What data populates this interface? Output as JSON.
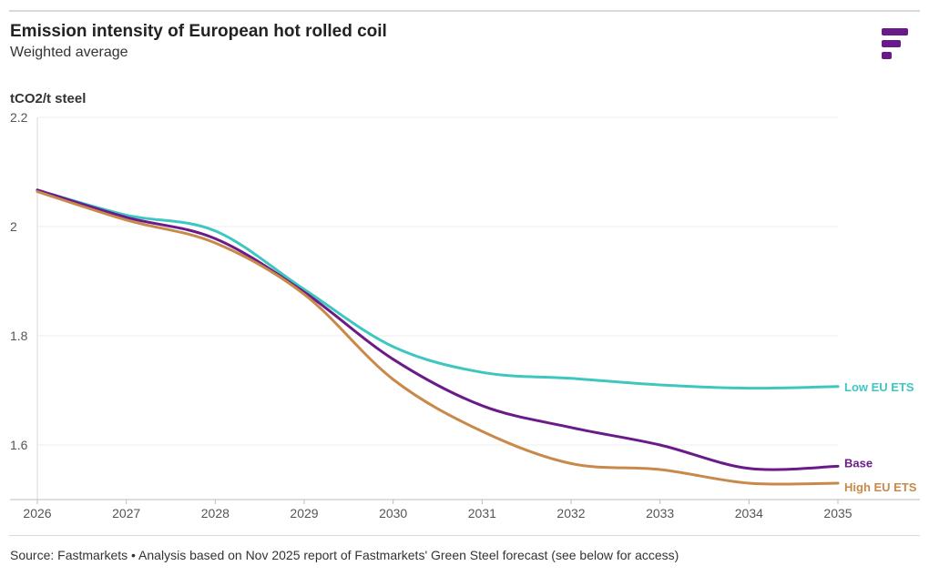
{
  "header": {
    "title": "Emission intensity of European hot rolled coil",
    "subtitle": "Weighted average",
    "unit_label": "tCO2/t steel"
  },
  "footer": {
    "source": "Source: Fastmarkets • Analysis based on Nov 2025 report of Fastmarkets' Green Steel forecast (see below for access)"
  },
  "colors": {
    "logo": "#6a1b8a",
    "grid": "#ececec"
  },
  "chart_data": {
    "type": "line",
    "title": "Emission intensity of European hot rolled coil",
    "subtitle": "Weighted average",
    "xlabel": "",
    "ylabel": "tCO2/t steel",
    "x": [
      2026,
      2027,
      2028,
      2029,
      2030,
      2031,
      2032,
      2033,
      2034,
      2035
    ],
    "x_ticks": [
      "2026",
      "2027",
      "2028",
      "2029",
      "2030",
      "2031",
      "2032",
      "2033",
      "2034",
      "2035"
    ],
    "y_ticks": [
      "1.6",
      "1.8",
      "2",
      "2.2"
    ],
    "y_tick_values": [
      1.6,
      1.8,
      2.0,
      2.2
    ],
    "ylim": [
      1.5,
      2.2
    ],
    "xlim": [
      2026,
      2035
    ],
    "grid": true,
    "legend": "inline-right",
    "series": [
      {
        "name": "Low EU ETS",
        "color": "#3ec7c1",
        "values": [
          2.067,
          2.021,
          1.992,
          1.885,
          1.78,
          1.733,
          1.722,
          1.71,
          1.704,
          1.707
        ]
      },
      {
        "name": "Base",
        "color": "#6a1b8a",
        "values": [
          2.067,
          2.017,
          1.978,
          1.88,
          1.757,
          1.672,
          1.632,
          1.6,
          1.557,
          1.561
        ]
      },
      {
        "name": "High EU ETS",
        "color": "#c8894a",
        "values": [
          2.064,
          2.012,
          1.97,
          1.876,
          1.72,
          1.625,
          1.566,
          1.555,
          1.53,
          1.53
        ]
      }
    ]
  }
}
